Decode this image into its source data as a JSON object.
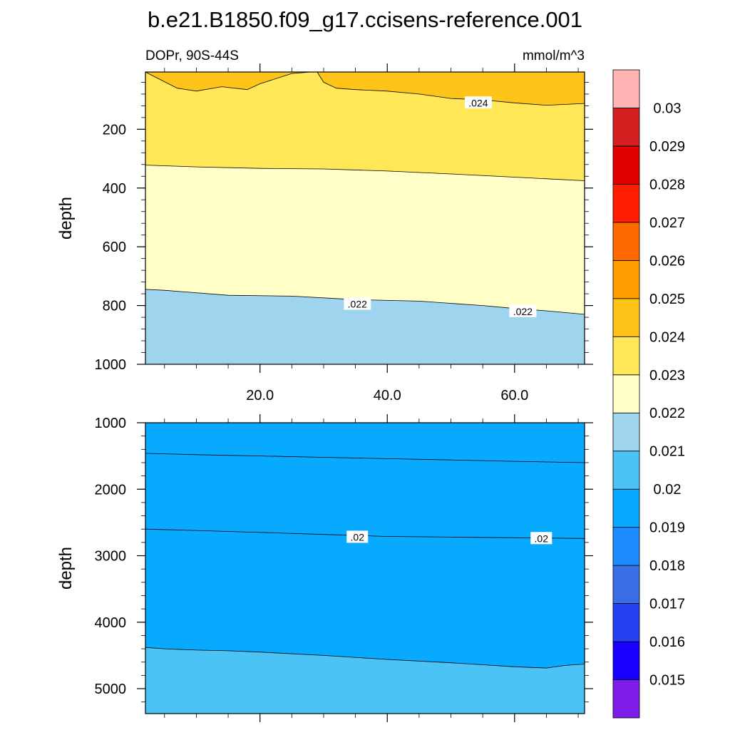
{
  "chart_data": {
    "type": "heatmap",
    "title": "b.e21.B1850.f09_g17.ccisens-reference.001",
    "variable_label": "DOPr, 90S-44S",
    "units_label": "mmol/m^3",
    "x_ticks": [
      20,
      40,
      60
    ],
    "x_tick_labels": [
      "20.0",
      "40.0",
      "60.0"
    ],
    "xlim": [
      2,
      71
    ],
    "colorbar": {
      "levels": [
        0.015,
        0.016,
        0.017,
        0.018,
        0.019,
        0.02,
        0.021,
        0.022,
        0.023,
        0.024,
        0.025,
        0.026,
        0.027,
        0.028,
        0.029,
        0.03
      ],
      "level_labels": [
        "0.015",
        "0.016",
        "0.017",
        "0.018",
        "0.019",
        "0.02",
        "0.021",
        "0.022",
        "0.023",
        "0.024",
        "0.025",
        "0.026",
        "0.027",
        "0.028",
        "0.029",
        "0.03"
      ],
      "colors": [
        "#7f1de8",
        "#1a00ff",
        "#2541f2",
        "#3a6ee6",
        "#1e8cff",
        "#08aaff",
        "#4cc3f5",
        "#9ed4ee",
        "#ffffc7",
        "#ffe757",
        "#ffc41a",
        "#ff9c00",
        "#ff6a00",
        "#ff1e00",
        "#e10000",
        "#d42020",
        "#ffb3b3"
      ]
    },
    "panels": [
      {
        "name": "upper",
        "ylabel": "depth",
        "ylim": [
          5,
          1000
        ],
        "y_ticks": [
          200,
          400,
          600,
          800,
          1000
        ],
        "y_tick_labels": [
          "200",
          "400",
          "600",
          "800",
          "1000"
        ],
        "show_x_labels": true,
        "contours": [
          {
            "level": 0.022,
            "x": [
              2,
              5,
              15,
              25,
              35,
              45,
              55,
              60,
              65,
              71
            ],
            "depth": [
              745,
              748,
              765,
              768,
              780,
              785,
              800,
              810,
              818,
              830
            ]
          },
          {
            "level": 0.023,
            "x": [
              2,
              10,
              20,
              30,
              40,
              50,
              60,
              71
            ],
            "depth": [
              322,
              328,
              333,
              335,
              342,
              352,
              363,
              375
            ]
          },
          {
            "level": 0.024,
            "x": [
              5,
              7,
              10,
              14,
              18,
              20,
              25,
              28,
              29,
              30,
              32,
              35,
              40,
              45,
              50,
              55,
              60,
              65,
              71
            ],
            "depth": [
              5,
              60,
              70,
              55,
              65,
              45,
              10,
              5,
              5,
              40,
              60,
              65,
              70,
              80,
              95,
              100,
              110,
              118,
              112
            ]
          }
        ],
        "contour_labels": [
          {
            "text": ".022",
            "x": 35.3,
            "depth": 795
          },
          {
            "text": ".022",
            "x": 61.3,
            "depth": 820
          },
          {
            "text": ".024",
            "x": 54.3,
            "depth": 110
          }
        ]
      },
      {
        "name": "lower",
        "ylabel": "depth",
        "ylim": [
          1000,
          5375
        ],
        "y_ticks": [
          1000,
          2000,
          3000,
          4000,
          5000
        ],
        "y_tick_labels": [
          "1000",
          "2000",
          "3000",
          "4000",
          "5000"
        ],
        "show_x_labels": false,
        "contours": [
          {
            "level": 0.021,
            "x": [
              2,
              10,
              20,
              30,
              40,
              50,
              60,
              71
            ],
            "depth": [
              1460,
              1480,
              1500,
              1520,
              1540,
              1560,
              1580,
              1600
            ]
          },
          {
            "level": 0.02,
            "x": [
              2,
              10,
              20,
              30,
              40,
              50,
              60,
              71
            ],
            "depth": [
              2600,
              2620,
              2650,
              2680,
              2710,
              2720,
              2730,
              2740
            ]
          },
          {
            "level": 0.019,
            "x": [
              2,
              5,
              10,
              15,
              20,
              30,
              40,
              50,
              55,
              60,
              65,
              68,
              71
            ],
            "depth": [
              4380,
              4400,
              4420,
              4430,
              4450,
              4500,
              4560,
              4610,
              4640,
              4670,
              4690,
              4650,
              4630
            ]
          }
        ],
        "contour_labels": [
          {
            "text": ".02",
            "x": 35.3,
            "depth": 2720
          },
          {
            "text": ".02",
            "x": 64.2,
            "depth": 2740
          }
        ]
      }
    ]
  }
}
